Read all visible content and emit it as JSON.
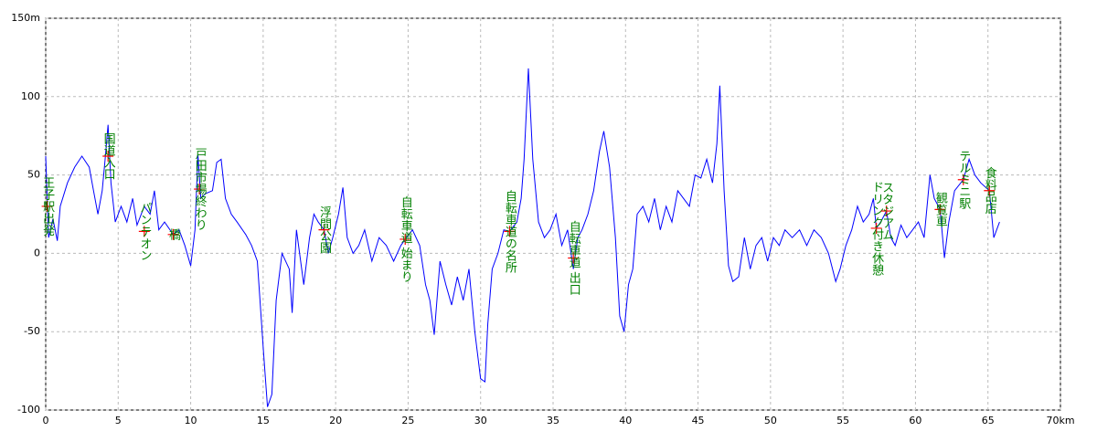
{
  "chart_data": {
    "type": "line",
    "color": "#0000ff",
    "grid": true,
    "xlim": [
      0,
      70
    ],
    "ylim": [
      -100,
      150
    ],
    "xticks": [
      0,
      5,
      10,
      15,
      20,
      25,
      30,
      35,
      40,
      45,
      50,
      55,
      60,
      65,
      {
        "value": 70,
        "label": "70km"
      }
    ],
    "yticks": [
      -100,
      -50,
      0,
      50,
      100,
      {
        "value": 150,
        "label": "150m"
      }
    ],
    "x": [
      0,
      0.2,
      0.5,
      0.8,
      1,
      1.5,
      2,
      2.5,
      3,
      3.3,
      3.6,
      3.9,
      4.1,
      4.3,
      4.5,
      4.8,
      5.2,
      5.6,
      6,
      6.3,
      6.8,
      7.2,
      7.5,
      7.8,
      8.2,
      8.8,
      9.2,
      9.6,
      10,
      10.3,
      10.5,
      10.7,
      11,
      11.5,
      11.8,
      12.1,
      12.4,
      12.8,
      13.2,
      13.8,
      14.2,
      14.6,
      15,
      15.3,
      15.6,
      15.9,
      16.3,
      16.8,
      17,
      17.3,
      17.8,
      18.2,
      18.5,
      18.8,
      19.2,
      19.5,
      19.8,
      20.2,
      20.5,
      20.8,
      21.2,
      21.6,
      22,
      22.5,
      23,
      23.5,
      24,
      24.5,
      24.8,
      25.3,
      25.8,
      26.2,
      26.5,
      26.8,
      27.2,
      27.6,
      28,
      28.4,
      28.8,
      29.2,
      29.6,
      30,
      30.3,
      30.5,
      30.8,
      31.2,
      31.6,
      32,
      32.5,
      32.8,
      33,
      33.3,
      33.6,
      34,
      34.4,
      34.8,
      35.2,
      35.6,
      36,
      36.4,
      36.7,
      37,
      37.4,
      37.8,
      38.2,
      38.5,
      38.9,
      39.3,
      39.6,
      39.9,
      40.2,
      40.5,
      40.8,
      41.2,
      41.6,
      42,
      42.4,
      42.8,
      43.2,
      43.6,
      44,
      44.4,
      44.8,
      45.2,
      45.6,
      46,
      46.3,
      46.5,
      46.8,
      47.1,
      47.4,
      47.8,
      48.2,
      48.6,
      49,
      49.4,
      49.8,
      50.2,
      50.6,
      51,
      51.5,
      52,
      52.5,
      53,
      53.5,
      54,
      54.5,
      54.8,
      55.2,
      55.6,
      56,
      56.4,
      56.8,
      57.1,
      57.3,
      57.6,
      58,
      58.3,
      58.6,
      59,
      59.4,
      59.8,
      60.2,
      60.6,
      61,
      61.3,
      61.7,
      62,
      62.3,
      62.7,
      63.3,
      63.7,
      64.1,
      64.5,
      65.1,
      65.4,
      65.8
    ],
    "values": [
      62,
      10,
      22,
      8,
      30,
      45,
      55,
      62,
      55,
      40,
      25,
      40,
      60,
      82,
      45,
      20,
      30,
      20,
      35,
      18,
      30,
      25,
      40,
      15,
      20,
      12,
      15,
      5,
      -8,
      15,
      63,
      35,
      38,
      40,
      58,
      60,
      35,
      25,
      20,
      12,
      5,
      -5,
      -60,
      -98,
      -90,
      -30,
      0,
      -10,
      -38,
      15,
      -20,
      10,
      25,
      20,
      15,
      0,
      10,
      25,
      42,
      10,
      0,
      5,
      15,
      -5,
      10,
      5,
      -5,
      5,
      9,
      15,
      5,
      -20,
      -30,
      -52,
      -5,
      -20,
      -33,
      -15,
      -30,
      -10,
      -50,
      -80,
      -82,
      -45,
      -10,
      0,
      15,
      14,
      20,
      35,
      60,
      118,
      60,
      20,
      10,
      15,
      25,
      5,
      15,
      -10,
      10,
      15,
      25,
      40,
      65,
      78,
      55,
      10,
      -40,
      -50,
      -20,
      -10,
      25,
      30,
      20,
      35,
      15,
      30,
      20,
      40,
      35,
      30,
      50,
      48,
      60,
      45,
      70,
      107,
      40,
      -8,
      -18,
      -15,
      10,
      -10,
      5,
      10,
      -5,
      10,
      5,
      15,
      10,
      15,
      5,
      15,
      10,
      0,
      -18,
      -10,
      5,
      15,
      30,
      20,
      25,
      35,
      16,
      20,
      27,
      10,
      5,
      18,
      10,
      15,
      20,
      10,
      50,
      35,
      28,
      -3,
      20,
      40,
      47,
      60,
      50,
      45,
      40,
      10,
      20
    ],
    "waypoints": [
      {
        "label": "王子駅出発",
        "x": 0.1,
        "y": 30
      },
      {
        "label": "国道入口",
        "x": 4.3,
        "y": 62
      },
      {
        "label": "パンテオン",
        "x": 6.8,
        "y": 14
      },
      {
        "label": "橋",
        "x": 8.8,
        "y": 12
      },
      {
        "label": "戸田市場終わり",
        "x": 10.6,
        "y": 41
      },
      {
        "label": "浮間公園",
        "x": 19.2,
        "y": 15
      },
      {
        "label": "自転車道 始まり",
        "x": 24.8,
        "y": 9
      },
      {
        "label": "自転車道の名所",
        "x": 32,
        "y": 14
      },
      {
        "label": "自転車道 出口",
        "x": 36.4,
        "y": -3
      },
      {
        "label": "ドリンク付き休憩",
        "x": 57.3,
        "y": 16
      },
      {
        "label": "スタジアム",
        "x": 58,
        "y": 27
      },
      {
        "label": "観覧車",
        "x": 61.7,
        "y": 28
      },
      {
        "label": "テルミニ駅",
        "x": 63.3,
        "y": 47
      },
      {
        "label": "食料品店",
        "x": 65.1,
        "y": 40
      }
    ]
  }
}
